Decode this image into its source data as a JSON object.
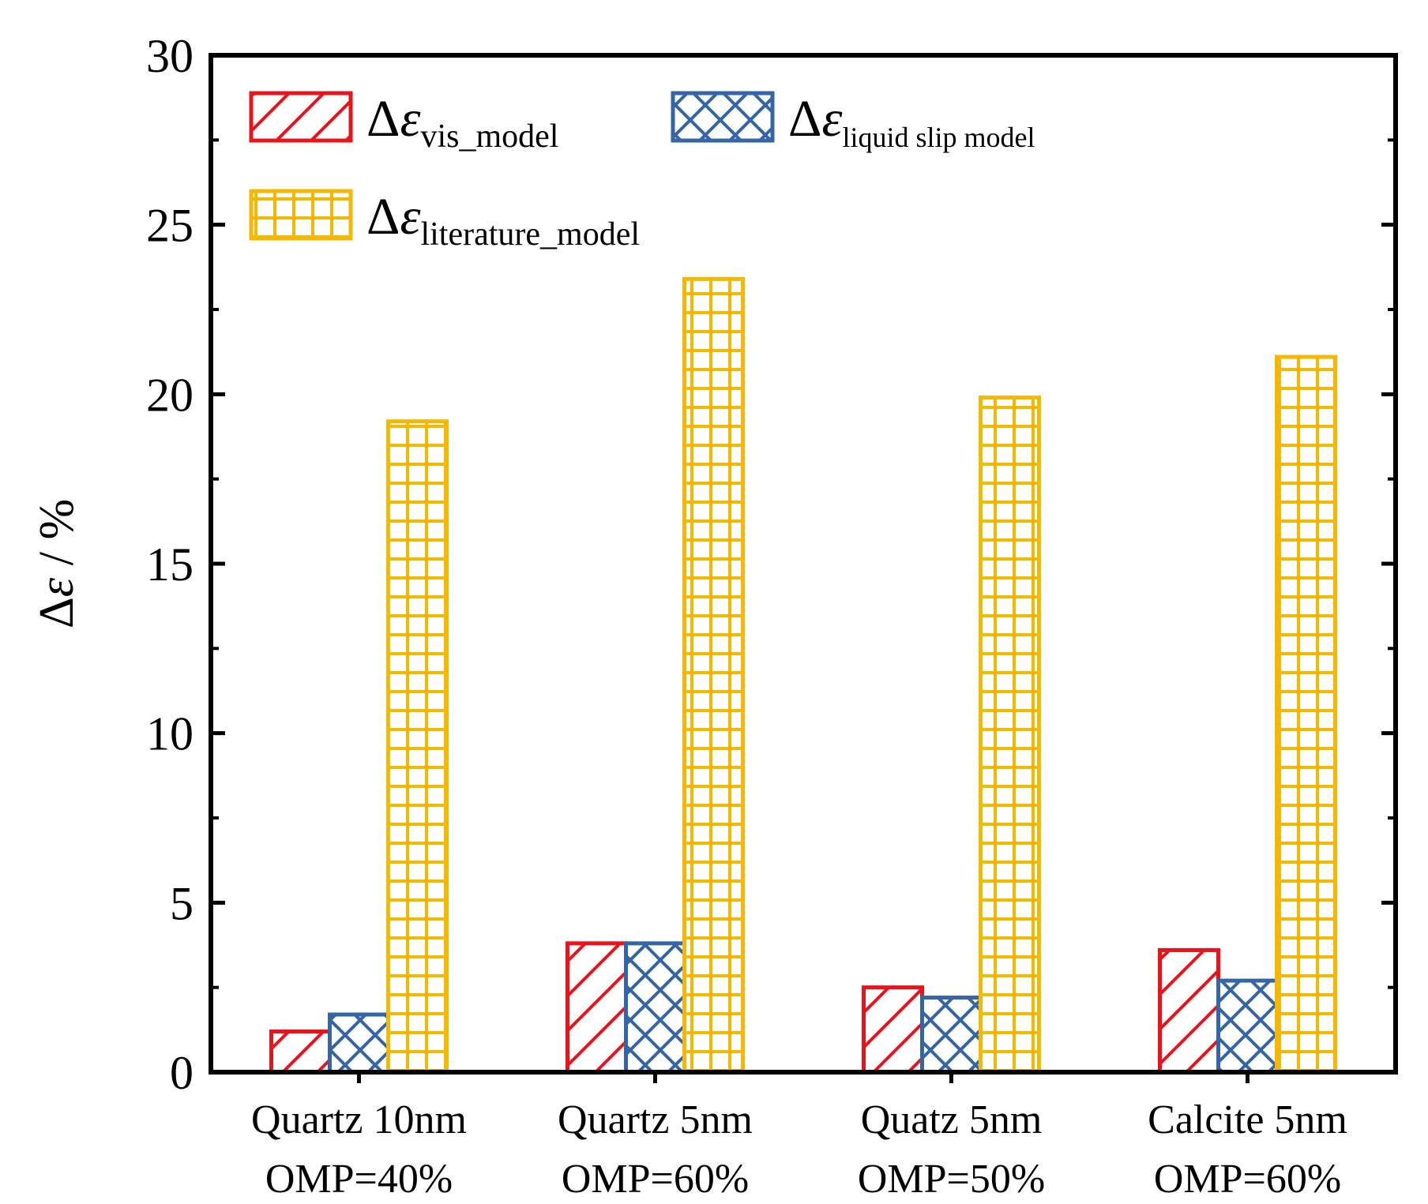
{
  "chart_data": {
    "type": "bar",
    "title": "",
    "xlabel": "",
    "ylabel": {
      "delta": "Δ",
      "epsilon": "ε",
      "unit": " / %"
    },
    "ylim": [
      0,
      30
    ],
    "yticks": [
      0,
      5,
      10,
      15,
      20,
      25,
      30
    ],
    "categories": [
      {
        "line1": "Quartz 10nm",
        "line2": "OMP=40%"
      },
      {
        "line1": "Quartz 5nm",
        "line2": "OMP=60%"
      },
      {
        "line1": "Quatz 5nm",
        "line2": "OMP=50%"
      },
      {
        "line1": "Calcite 5nm",
        "line2": "OMP=60%"
      }
    ],
    "series": [
      {
        "name": "Δε_vis_model",
        "symbol": "Δε",
        "subscript": "vis_model",
        "color": "#e8141c",
        "pattern": "diagonal",
        "values": [
          1.2,
          3.8,
          2.5,
          3.6
        ]
      },
      {
        "name": "Δε_liquid slip model",
        "symbol": "Δε",
        "subscript": "liquid slip model",
        "color": "#3465a4",
        "pattern": "crosshatch",
        "values": [
          1.7,
          3.8,
          2.2,
          2.7
        ]
      },
      {
        "name": "Δε_literature_model",
        "symbol": "Δε",
        "subscript": "literature_model",
        "color": "#f5b800",
        "pattern": "grid",
        "values": [
          19.2,
          23.4,
          19.9,
          21.1
        ]
      }
    ],
    "legend_position": "top-left",
    "grid": false
  }
}
